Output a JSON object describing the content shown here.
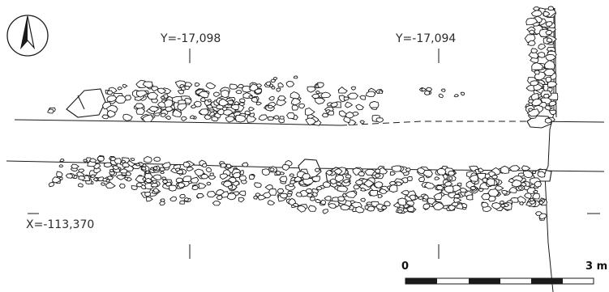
{
  "figure": {
    "grid_labels": {
      "y_left": "Y=-17,098",
      "y_right": "Y=-17,094",
      "x_left": "X=-113,370"
    },
    "scale_bar": {
      "start_label": "0",
      "end_label": "3 m"
    },
    "north_arrow_icon": "north-arrow-icon",
    "colors": {
      "ink": "#1a1a1a",
      "stone_fill": "#ffffff"
    }
  }
}
